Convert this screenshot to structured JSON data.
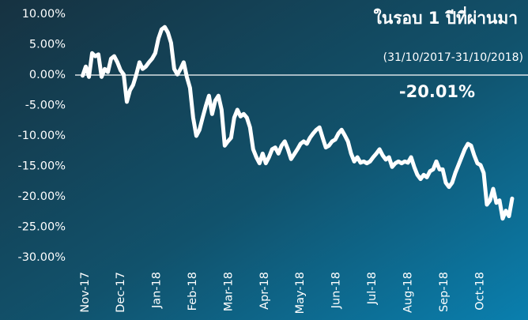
{
  "chart_data": {
    "type": "line",
    "title": "ในรอบ 1 ปีที่ผ่านมา",
    "subtitle": "(31/10/2017-31/10/2018)",
    "annotation": "-20.01%",
    "line_width": 5,
    "hline": 0,
    "xlim": [
      -0.26,
      12.36
    ],
    "xticks": [
      {
        "value": 0,
        "label": "Nov-17"
      },
      {
        "value": 1,
        "label": "Dec-17"
      },
      {
        "value": 2,
        "label": "Jan-18"
      },
      {
        "value": 3,
        "label": "Feb-18"
      },
      {
        "value": 4,
        "label": "Mar-18"
      },
      {
        "value": 5,
        "label": "Apr-18"
      },
      {
        "value": 6,
        "label": "May-18"
      },
      {
        "value": 7,
        "label": "Jun-18"
      },
      {
        "value": 8,
        "label": "Jul-18"
      },
      {
        "value": 9,
        "label": "Aug-18"
      },
      {
        "value": 10,
        "label": "Sep-18"
      },
      {
        "value": 11,
        "label": "Oct-18"
      }
    ],
    "ylim": [
      -30,
      10
    ],
    "yticks": [
      {
        "value": 10,
        "label": "10.00%"
      },
      {
        "value": 5,
        "label": "5.00%"
      },
      {
        "value": 0,
        "label": "0.00%"
      },
      {
        "value": -5,
        "label": "-5.00%"
      },
      {
        "value": -10,
        "label": "-10.00%"
      },
      {
        "value": -15,
        "label": "-15.00%"
      },
      {
        "value": -20,
        "label": "-20.00%"
      },
      {
        "value": -25,
        "label": "-25.00%"
      },
      {
        "value": -30,
        "label": "-30.00%"
      }
    ],
    "x": [
      -0.05,
      0.038,
      0.126,
      0.214,
      0.302,
      0.39,
      0.478,
      0.566,
      0.654,
      0.742,
      0.83,
      0.918,
      1.006,
      1.094,
      1.182,
      1.27,
      1.358,
      1.446,
      1.534,
      1.622,
      1.71,
      1.798,
      1.886,
      1.974,
      2.062,
      2.15,
      2.238,
      2.326,
      2.414,
      2.502,
      2.59,
      2.678,
      2.766,
      2.854,
      2.942,
      3.03,
      3.118,
      3.206,
      3.294,
      3.382,
      3.47,
      3.558,
      3.646,
      3.734,
      3.822,
      3.91,
      3.998,
      4.086,
      4.174,
      4.262,
      4.35,
      4.438,
      4.526,
      4.614,
      4.702,
      4.79,
      4.878,
      4.966,
      5.054,
      5.142,
      5.23,
      5.318,
      5.406,
      5.494,
      5.582,
      5.67,
      5.758,
      5.846,
      5.934,
      6.022,
      6.11,
      6.198,
      6.286,
      6.374,
      6.462,
      6.55,
      6.638,
      6.726,
      6.814,
      6.902,
      6.99,
      7.078,
      7.166,
      7.254,
      7.342,
      7.43,
      7.518,
      7.606,
      7.694,
      7.782,
      7.87,
      7.958,
      8.046,
      8.134,
      8.222,
      8.31,
      8.398,
      8.486,
      8.574,
      8.662,
      8.75,
      8.838,
      8.926,
      9.014,
      9.102,
      9.19,
      9.278,
      9.366,
      9.454,
      9.542,
      9.63,
      9.718,
      9.806,
      9.894,
      9.982,
      10.07,
      10.158,
      10.246,
      10.334,
      10.422,
      10.51,
      10.598,
      10.686,
      10.774,
      10.862,
      10.95,
      11.038,
      11.126,
      11.214,
      11.302,
      11.39,
      11.478,
      11.566,
      11.654,
      11.742,
      11.83,
      11.918
    ],
    "series": [
      {
        "color": "#ffffff",
        "values": [
          -0.1,
          1.4,
          -0.3,
          3.6,
          3.1,
          3.4,
          -0.3,
          1.0,
          0.5,
          2.7,
          3.1,
          2.1,
          0.8,
          0.1,
          -4.4,
          -2.5,
          -1.6,
          0.1,
          2.1,
          1.0,
          1.4,
          2.1,
          2.7,
          3.6,
          6.0,
          7.5,
          7.9,
          7.0,
          5.3,
          1.0,
          0.1,
          1.0,
          2.1,
          -0.3,
          -2.1,
          -7.0,
          -10.0,
          -9.0,
          -7.0,
          -5.1,
          -3.4,
          -6.4,
          -4.2,
          -3.4,
          -5.7,
          -11.6,
          -10.9,
          -10.3,
          -7.0,
          -5.7,
          -6.8,
          -6.4,
          -7.0,
          -8.6,
          -12.2,
          -13.5,
          -14.5,
          -12.9,
          -14.5,
          -13.5,
          -12.2,
          -11.9,
          -12.9,
          -11.6,
          -10.9,
          -12.2,
          -13.8,
          -13.0,
          -12.2,
          -11.3,
          -10.9,
          -11.3,
          -10.3,
          -9.6,
          -9.0,
          -8.6,
          -10.3,
          -11.9,
          -11.6,
          -10.9,
          -10.6,
          -9.6,
          -9.0,
          -9.9,
          -10.9,
          -12.9,
          -14.2,
          -13.5,
          -14.4,
          -14.2,
          -14.5,
          -14.2,
          -13.5,
          -12.9,
          -12.2,
          -13.2,
          -13.9,
          -13.5,
          -15.1,
          -14.5,
          -14.2,
          -14.5,
          -14.2,
          -14.4,
          -13.5,
          -15.1,
          -16.4,
          -17.1,
          -16.4,
          -16.8,
          -15.8,
          -15.5,
          -14.2,
          -15.5,
          -15.5,
          -17.7,
          -18.4,
          -17.7,
          -16.1,
          -14.8,
          -13.5,
          -12.2,
          -11.3,
          -11.6,
          -13.2,
          -14.5,
          -14.8,
          -16.1,
          -21.3,
          -20.6,
          -18.7,
          -21.0,
          -20.6,
          -23.6,
          -22.3,
          -23.2,
          -20.3
        ]
      }
    ]
  }
}
